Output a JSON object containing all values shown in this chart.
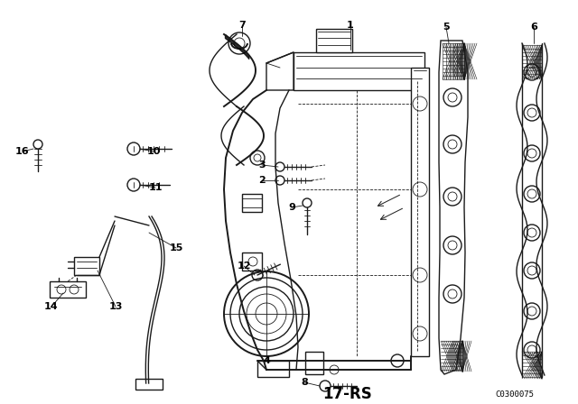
{
  "background_color": "#ffffff",
  "line_color": "#1a1a1a",
  "label_color": "#000000",
  "footer_label": "17-RS",
  "catalog_code": "C0300075",
  "fig_width": 6.4,
  "fig_height": 4.48,
  "dpi": 100
}
